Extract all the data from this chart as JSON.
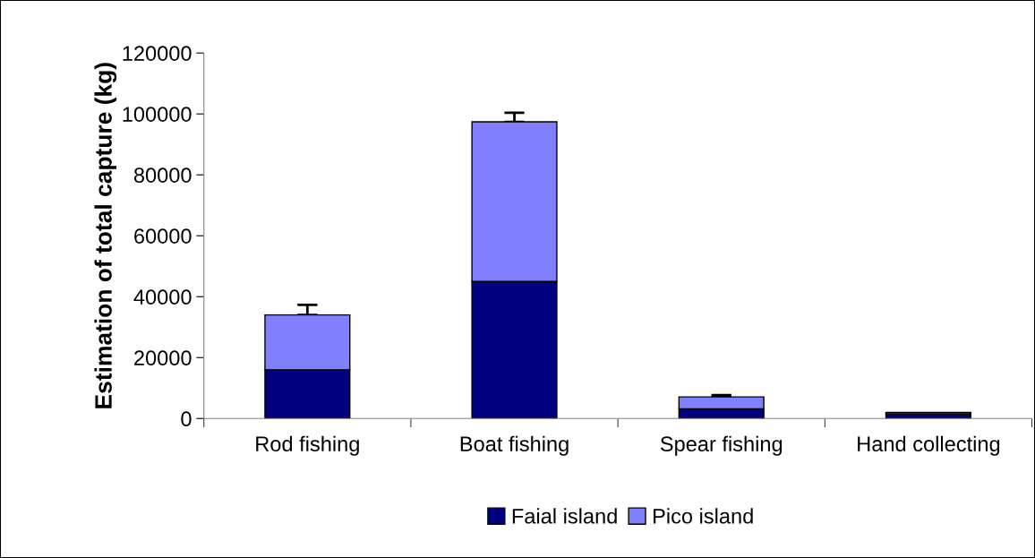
{
  "chart_data": {
    "type": "bar",
    "stacked": true,
    "ylabel": "Estimation of total capture (kg)",
    "categories": [
      "Rod fishing",
      "Boat fishing",
      "Spear fishing",
      "Hand collecting"
    ],
    "series": [
      {
        "name": "Faial island",
        "color": "#000080",
        "values": [
          16000,
          45000,
          3200,
          1500
        ]
      },
      {
        "name": "Pico island",
        "color": "#8080ff",
        "values": [
          18000,
          52400,
          3900,
          500
        ],
        "errors": [
          3300,
          3000,
          600,
          null
        ]
      }
    ],
    "ylim": [
      0,
      120000
    ],
    "yticks": [
      0,
      20000,
      40000,
      60000,
      80000,
      100000,
      120000
    ],
    "grid": false,
    "legend": "bottom"
  }
}
